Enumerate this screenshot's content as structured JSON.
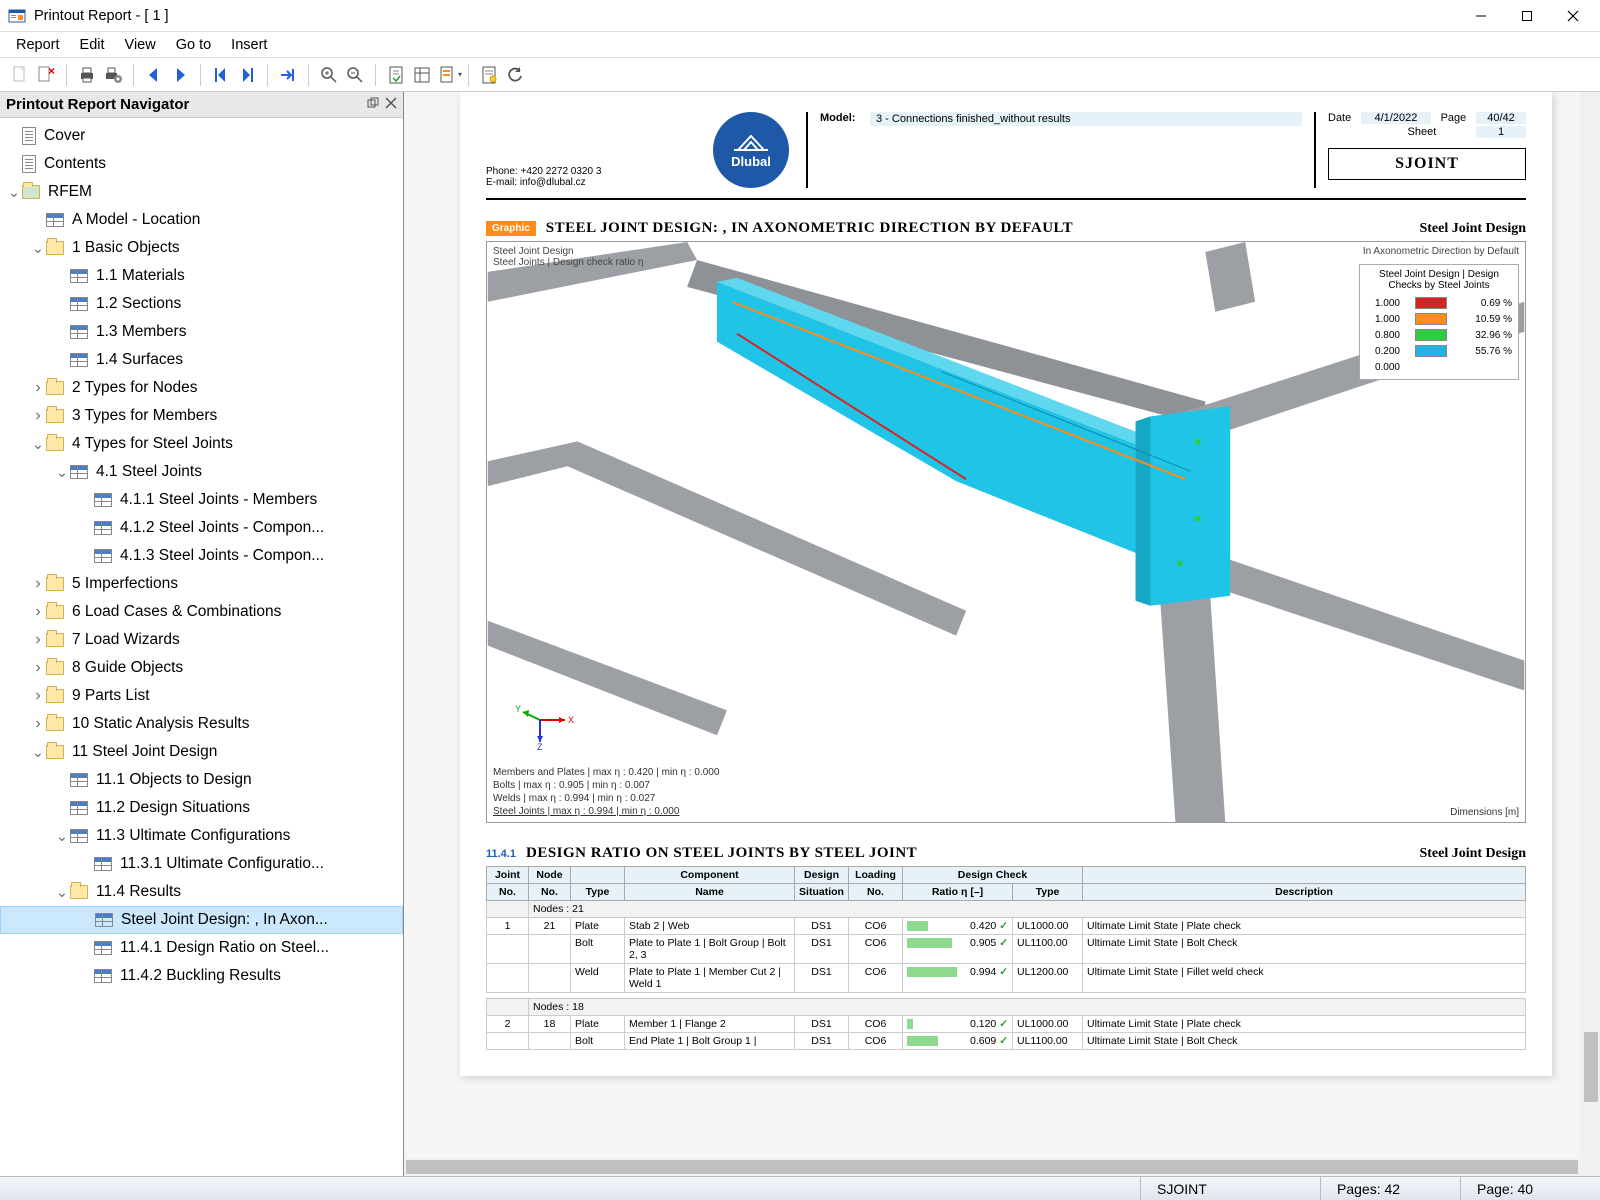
{
  "window": {
    "title": "Printout Report - [ 1 ]"
  },
  "menu": {
    "items": [
      "Report",
      "Edit",
      "View",
      "Go to",
      "Insert"
    ]
  },
  "nav": {
    "title": "Printout Report Navigator",
    "tree": [
      {
        "indent": 0,
        "exp": "",
        "icon": "doc",
        "label": "Cover"
      },
      {
        "indent": 0,
        "exp": "",
        "icon": "doc",
        "label": "Contents"
      },
      {
        "indent": 0,
        "exp": "v",
        "icon": "folder",
        "label": "RFEM",
        "folderTint": "#cfe6cf"
      },
      {
        "indent": 1,
        "exp": "",
        "icon": "table",
        "label": "A Model - Location"
      },
      {
        "indent": 1,
        "exp": "v",
        "icon": "folder",
        "label": "1 Basic Objects"
      },
      {
        "indent": 2,
        "exp": "",
        "icon": "table",
        "label": "1.1 Materials"
      },
      {
        "indent": 2,
        "exp": "",
        "icon": "table",
        "label": "1.2 Sections"
      },
      {
        "indent": 2,
        "exp": "",
        "icon": "table",
        "label": "1.3 Members"
      },
      {
        "indent": 2,
        "exp": "",
        "icon": "table",
        "label": "1.4 Surfaces"
      },
      {
        "indent": 1,
        "exp": ">",
        "icon": "folder",
        "label": "2 Types for Nodes"
      },
      {
        "indent": 1,
        "exp": ">",
        "icon": "folder",
        "label": "3 Types for Members"
      },
      {
        "indent": 1,
        "exp": "v",
        "icon": "folder",
        "label": "4 Types for Steel Joints"
      },
      {
        "indent": 2,
        "exp": "v",
        "icon": "table",
        "label": "4.1 Steel Joints"
      },
      {
        "indent": 3,
        "exp": "",
        "icon": "table",
        "label": "4.1.1 Steel Joints - Members"
      },
      {
        "indent": 3,
        "exp": "",
        "icon": "table",
        "label": "4.1.2 Steel Joints - Compon..."
      },
      {
        "indent": 3,
        "exp": "",
        "icon": "table",
        "label": "4.1.3 Steel Joints - Compon..."
      },
      {
        "indent": 1,
        "exp": ">",
        "icon": "folder",
        "label": "5 Imperfections"
      },
      {
        "indent": 1,
        "exp": ">",
        "icon": "folder",
        "label": "6 Load Cases & Combinations"
      },
      {
        "indent": 1,
        "exp": ">",
        "icon": "folder",
        "label": "7 Load Wizards"
      },
      {
        "indent": 1,
        "exp": ">",
        "icon": "folder",
        "label": "8 Guide Objects"
      },
      {
        "indent": 1,
        "exp": ">",
        "icon": "folder",
        "label": "9 Parts List"
      },
      {
        "indent": 1,
        "exp": ">",
        "icon": "folder",
        "label": "10 Static Analysis Results"
      },
      {
        "indent": 1,
        "exp": "v",
        "icon": "folder",
        "label": "11 Steel Joint Design"
      },
      {
        "indent": 2,
        "exp": "",
        "icon": "table",
        "label": "11.1 Objects to Design"
      },
      {
        "indent": 2,
        "exp": "",
        "icon": "table",
        "label": "11.2 Design Situations"
      },
      {
        "indent": 2,
        "exp": "v",
        "icon": "table",
        "label": "11.3 Ultimate Configurations"
      },
      {
        "indent": 3,
        "exp": "",
        "icon": "table",
        "label": "11.3.1 Ultimate Configuratio..."
      },
      {
        "indent": 2,
        "exp": "v",
        "icon": "folder",
        "label": "11.4 Results"
      },
      {
        "indent": 3,
        "exp": "",
        "icon": "table",
        "label": "Steel Joint Design: , In Axon...",
        "selected": true
      },
      {
        "indent": 3,
        "exp": "",
        "icon": "table",
        "label": "11.4.1 Design Ratio on Steel..."
      },
      {
        "indent": 3,
        "exp": "",
        "icon": "table",
        "label": "11.4.2 Buckling Results"
      }
    ]
  },
  "report": {
    "phone": "Phone: +420 2272 0320 3",
    "email": "E-mail: info@dlubal.cz",
    "logo_text": "Dlubal",
    "model_label": "Model:",
    "model_value": "3 - Connections finished_without results",
    "date_label": "Date",
    "date_value": "4/1/2022",
    "page_label": "Page",
    "page_value": "40/42",
    "sheet_label": "Sheet",
    "sheet_value": "1",
    "sjoint": "SJOINT",
    "section1": {
      "badge": "Graphic",
      "title": "STEEL JOINT DESIGN: , IN AXONOMETRIC DIRECTION BY DEFAULT",
      "right": "Steel Joint Design"
    },
    "view3d": {
      "tl1": "Steel Joint Design",
      "tl2": "Steel Joints | Design check ratio η",
      "tr": "In Axonometric Direction by Default",
      "legend_title": "Steel Joint Design | Design Checks by Steel Joints",
      "legend": [
        {
          "tick": "1.000",
          "color": "#d62424",
          "pct": "0.69 %"
        },
        {
          "tick": "1.000",
          "color": "#ff8c1a",
          "pct": "10.59 %"
        },
        {
          "tick": "0.800",
          "color": "#2ecc40",
          "pct": "32.96 %"
        },
        {
          "tick": "0.200",
          "color": "#1fb4e6",
          "pct": "55.76 %"
        },
        {
          "tick": "0.000",
          "color": "",
          "pct": ""
        }
      ],
      "bottom": [
        "Members and Plates | max η : 0.420 | min η : 0.000",
        "Bolts | max η : 0.905 | min η : 0.007",
        "Welds | max η : 0.994 | min η : 0.027",
        "Steel Joints | max η : 0.994 | min η : 0.000"
      ],
      "dim": "Dimensions [m]",
      "beam_color": "#1fc4e6",
      "grey_beam": "#9ca0a4"
    },
    "section2": {
      "num": "11.4.1",
      "title": "DESIGN RATIO ON STEEL JOINTS BY STEEL JOINT",
      "right": "Steel Joint Design"
    },
    "table": {
      "headers_top": [
        "Joint",
        "Node",
        "",
        "Component",
        "Design",
        "Loading",
        "Design Check",
        "",
        ""
      ],
      "headers_bot": [
        "No.",
        "No.",
        "Type",
        "Name",
        "Situation",
        "No.",
        "Ratio η [–]",
        "Type",
        "Description"
      ],
      "groups": [
        {
          "label": "Nodes : 21",
          "joint": "1",
          "node": "21",
          "rows": [
            {
              "type": "Plate",
              "name": "Stab 2 | Web",
              "ds": "DS1",
              "load": "CO6",
              "ratio": "0.420",
              "ratioPct": 42,
              "dtype": "UL1000.00",
              "desc": "Ultimate Limit State | Plate check"
            },
            {
              "type": "Bolt",
              "name": "Plate to Plate 1 | Bolt Group | Bolt 2, 3",
              "ds": "DS1",
              "load": "CO6",
              "ratio": "0.905",
              "ratioPct": 90,
              "dtype": "UL1100.00",
              "desc": "Ultimate Limit State | Bolt Check"
            },
            {
              "type": "Weld",
              "name": "Plate to Plate 1 | Member Cut 2 | Weld 1",
              "ds": "DS1",
              "load": "CO6",
              "ratio": "0.994",
              "ratioPct": 99,
              "dtype": "UL1200.00",
              "desc": "Ultimate Limit State | Fillet weld check"
            }
          ]
        },
        {
          "label": "Nodes : 18",
          "joint": "2",
          "node": "18",
          "rows": [
            {
              "type": "Plate",
              "name": "Member 1 | Flange 2",
              "ds": "DS1",
              "load": "CO6",
              "ratio": "0.120",
              "ratioPct": 12,
              "dtype": "UL1000.00",
              "desc": "Ultimate Limit State | Plate check"
            },
            {
              "type": "Bolt",
              "name": "End Plate 1 | Bolt Group 1 |",
              "ds": "DS1",
              "load": "CO6",
              "ratio": "0.609",
              "ratioPct": 61,
              "dtype": "UL1100.00",
              "desc": "Ultimate Limit State | Bolt Check"
            }
          ]
        }
      ]
    }
  },
  "status": {
    "sjoint": "SJOINT",
    "pages": "Pages: 42",
    "page": "Page: 40"
  },
  "colors": {
    "accent_blue": "#235fd9",
    "accent_orange": "#ff8c1a"
  }
}
